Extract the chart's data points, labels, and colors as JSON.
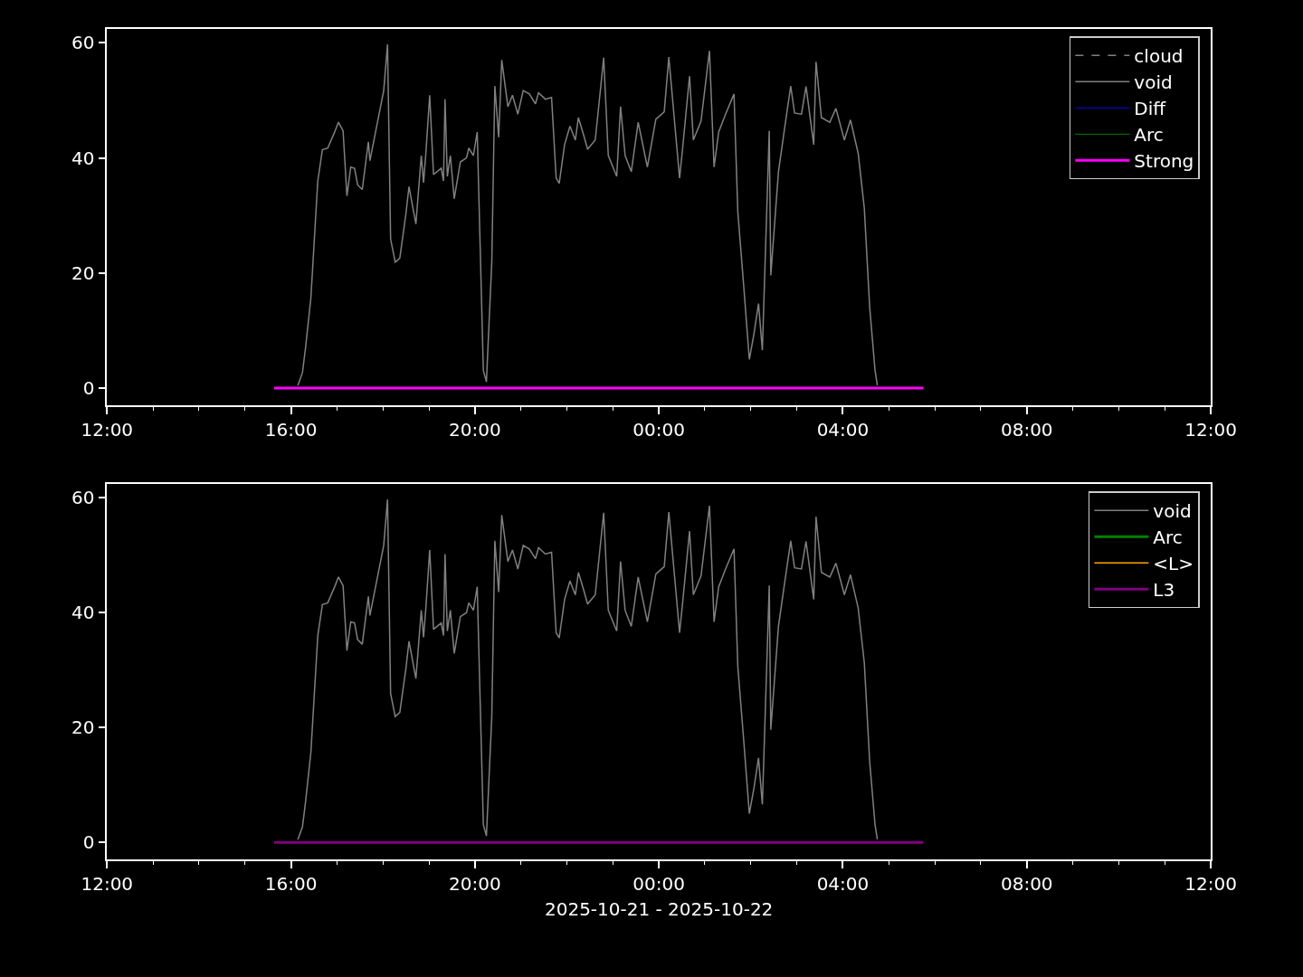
{
  "chart_data": [
    {
      "type": "line",
      "xlim": [
        "2025-10-21T12:00",
        "2025-10-22T12:00"
      ],
      "ylim": [
        -2.97,
        62.4
      ],
      "yticks": [
        0,
        20,
        40,
        60
      ],
      "xticks": [
        {
          "value": "2025-10-21T12:00",
          "label": "12:00"
        },
        {
          "value": "2025-10-21T13:00",
          "label": null
        },
        {
          "value": "2025-10-21T14:00",
          "label": null
        },
        {
          "value": "2025-10-21T15:00",
          "label": null
        },
        {
          "value": "2025-10-21T16:00",
          "label": "16:00"
        },
        {
          "value": "2025-10-21T17:00",
          "label": null
        },
        {
          "value": "2025-10-21T18:00",
          "label": null
        },
        {
          "value": "2025-10-21T19:00",
          "label": null
        },
        {
          "value": "2025-10-21T20:00",
          "label": "20:00"
        },
        {
          "value": "2025-10-21T21:00",
          "label": null
        },
        {
          "value": "2025-10-21T22:00",
          "label": null
        },
        {
          "value": "2025-10-21T23:00",
          "label": null
        },
        {
          "value": "2025-10-22T00:00",
          "label": "00:00"
        },
        {
          "value": "2025-10-22T01:00",
          "label": null
        },
        {
          "value": "2025-10-22T02:00",
          "label": null
        },
        {
          "value": "2025-10-22T03:00",
          "label": null
        },
        {
          "value": "2025-10-22T04:00",
          "label": "04:00"
        },
        {
          "value": "2025-10-22T05:00",
          "label": null
        },
        {
          "value": "2025-10-22T06:00",
          "label": null
        },
        {
          "value": "2025-10-22T07:00",
          "label": null
        },
        {
          "value": "2025-10-22T08:00",
          "label": "08:00"
        },
        {
          "value": "2025-10-22T09:00",
          "label": null
        },
        {
          "value": "2025-10-22T10:00",
          "label": null
        },
        {
          "value": "2025-10-22T11:00",
          "label": null
        },
        {
          "value": "2025-10-22T12:00",
          "label": "12:00"
        }
      ],
      "legend": "top right",
      "series": [
        {
          "name": "cloud",
          "color": "#808080",
          "line_style": "dashed"
        },
        {
          "name": "void",
          "color": "#808080",
          "x": [
            "2025-10-21T16:09",
            "2025-10-21T16:15",
            "2025-10-21T16:19",
            "2025-10-21T16:26",
            "2025-10-21T16:35",
            "2025-10-21T16:41",
            "2025-10-21T16:48",
            "2025-10-21T16:57",
            "2025-10-21T17:02",
            "2025-10-21T17:08",
            "2025-10-21T17:13",
            "2025-10-21T17:18",
            "2025-10-21T17:23",
            "2025-10-21T17:27",
            "2025-10-21T17:33",
            "2025-10-21T17:41",
            "2025-10-21T17:43",
            "2025-10-21T18:01",
            "2025-10-21T18:06",
            "2025-10-21T18:10",
            "2025-10-21T18:16",
            "2025-10-21T18:22",
            "2025-10-21T18:30",
            "2025-10-21T18:34",
            "2025-10-21T18:43",
            "2025-10-21T18:50",
            "2025-10-21T18:53",
            "2025-10-21T18:56",
            "2025-10-21T19:01",
            "2025-10-21T19:06",
            "2025-10-21T19:16",
            "2025-10-21T19:19",
            "2025-10-21T19:21",
            "2025-10-21T19:24",
            "2025-10-21T19:28",
            "2025-10-21T19:33",
            "2025-10-21T19:41",
            "2025-10-21T19:49",
            "2025-10-21T19:52",
            "2025-10-21T19:58",
            "2025-10-21T20:03",
            "2025-10-21T20:11",
            "2025-10-21T20:15",
            "2025-10-21T20:22",
            "2025-10-21T20:26",
            "2025-10-21T20:31",
            "2025-10-21T20:35",
            "2025-10-21T20:43",
            "2025-10-21T20:49",
            "2025-10-21T20:56",
            "2025-10-21T21:03",
            "2025-10-21T21:11",
            "2025-10-21T21:19",
            "2025-10-21T21:23",
            "2025-10-21T21:32",
            "2025-10-21T21:40",
            "2025-10-21T21:46",
            "2025-10-21T21:50",
            "2025-10-21T21:57",
            "2025-10-21T22:04",
            "2025-10-21T22:11",
            "2025-10-21T22:15",
            "2025-10-21T22:22",
            "2025-10-21T22:27",
            "2025-10-21T22:37",
            "2025-10-21T22:48",
            "2025-10-21T22:54",
            "2025-10-21T23:05",
            "2025-10-21T23:10",
            "2025-10-21T23:16",
            "2025-10-21T23:24",
            "2025-10-21T23:33",
            "2025-10-21T23:45",
            "2025-10-21T23:56",
            "2025-10-22T00:07",
            "2025-10-22T00:13",
            "2025-10-22T00:27",
            "2025-10-22T00:31",
            "2025-10-22T00:40",
            "2025-10-22T00:45",
            "2025-10-22T00:55",
            "2025-10-22T01:06",
            "2025-10-22T01:12",
            "2025-10-22T01:18",
            "2025-10-22T01:27",
            "2025-10-22T01:38",
            "2025-10-22T01:43",
            "2025-10-22T01:51",
            "2025-10-22T01:58",
            "2025-10-22T02:04",
            "2025-10-22T02:10",
            "2025-10-22T02:15",
            "2025-10-22T02:24",
            "2025-10-22T02:26",
            "2025-10-22T02:36",
            "2025-10-22T02:43",
            "2025-10-22T02:52",
            "2025-10-22T02:57",
            "2025-10-22T03:06",
            "2025-10-22T03:12",
            "2025-10-22T03:22",
            "2025-10-22T03:25",
            "2025-10-22T03:32",
            "2025-10-22T03:43",
            "2025-10-22T03:51",
            "2025-10-22T04:02",
            "2025-10-22T04:10",
            "2025-10-22T04:20",
            "2025-10-22T04:28",
            "2025-10-22T04:35",
            "2025-10-22T04:42",
            "2025-10-22T04:45"
          ],
          "values": [
            0.5,
            2.7,
            7,
            15.7,
            36,
            41.4,
            41.7,
            44.5,
            46.2,
            44.7,
            33.4,
            38.4,
            38.2,
            35.3,
            34.5,
            42.8,
            39.5,
            51.7,
            59.7,
            25.9,
            21.9,
            22.6,
            30.3,
            35,
            28.5,
            40.4,
            35.7,
            40.8,
            50.9,
            37.1,
            38.2,
            36,
            50.2,
            36.8,
            40.4,
            32.9,
            39.3,
            40,
            41.7,
            40.4,
            44.5,
            3.1,
            1.1,
            21.9,
            52.5,
            43.6,
            57,
            48.9,
            50.9,
            47.6,
            51.7,
            51.1,
            49.4,
            51.3,
            50.2,
            50.5,
            36.5,
            35.6,
            42.3,
            45.5,
            43.1,
            47,
            43.9,
            41.5,
            43.1,
            57.4,
            40.4,
            36.8,
            48.9,
            40.4,
            37.6,
            46.2,
            38.4,
            46.7,
            48,
            57.5,
            36.5,
            41.7,
            54.2,
            43.1,
            46.4,
            58.6,
            38.4,
            44.5,
            47.6,
            51.1,
            30.6,
            17.2,
            5,
            9.4,
            14.7,
            6.6,
            44.7,
            19.6,
            37.6,
            44.2,
            52.5,
            47.8,
            47.6,
            52.4,
            42.3,
            56.7,
            47,
            46.2,
            48.6,
            43.1,
            46.6,
            40.8,
            31.3,
            14.1,
            3.1,
            0.5
          ]
        },
        {
          "name": "Diff",
          "color": "#0000ff"
        },
        {
          "name": "Arc",
          "color": "#008000"
        },
        {
          "name": "Strong",
          "color": "#ff00ff",
          "x": [
            "2025-10-21T15:38",
            "2025-10-22T05:45"
          ],
          "values": [
            0,
            0
          ]
        }
      ]
    },
    {
      "type": "line",
      "xlabel": "2025-10-21 - 2025-10-22",
      "xlim": [
        "2025-10-21T12:00",
        "2025-10-22T12:00"
      ],
      "ylim": [
        -2.97,
        62.4
      ],
      "yticks": [
        0,
        20,
        40,
        60
      ],
      "xticks": [
        {
          "value": "2025-10-21T12:00",
          "label": "12:00"
        },
        {
          "value": "2025-10-21T13:00",
          "label": null
        },
        {
          "value": "2025-10-21T14:00",
          "label": null
        },
        {
          "value": "2025-10-21T15:00",
          "label": null
        },
        {
          "value": "2025-10-21T16:00",
          "label": "16:00"
        },
        {
          "value": "2025-10-21T17:00",
          "label": null
        },
        {
          "value": "2025-10-21T18:00",
          "label": null
        },
        {
          "value": "2025-10-21T19:00",
          "label": null
        },
        {
          "value": "2025-10-21T20:00",
          "label": "20:00"
        },
        {
          "value": "2025-10-21T21:00",
          "label": null
        },
        {
          "value": "2025-10-21T22:00",
          "label": null
        },
        {
          "value": "2025-10-21T23:00",
          "label": null
        },
        {
          "value": "2025-10-22T00:00",
          "label": "00:00"
        },
        {
          "value": "2025-10-22T01:00",
          "label": null
        },
        {
          "value": "2025-10-22T02:00",
          "label": null
        },
        {
          "value": "2025-10-22T03:00",
          "label": null
        },
        {
          "value": "2025-10-22T04:00",
          "label": "04:00"
        },
        {
          "value": "2025-10-22T05:00",
          "label": null
        },
        {
          "value": "2025-10-22T06:00",
          "label": null
        },
        {
          "value": "2025-10-22T07:00",
          "label": null
        },
        {
          "value": "2025-10-22T08:00",
          "label": "08:00"
        },
        {
          "value": "2025-10-22T09:00",
          "label": null
        },
        {
          "value": "2025-10-22T10:00",
          "label": null
        },
        {
          "value": "2025-10-22T11:00",
          "label": null
        },
        {
          "value": "2025-10-22T12:00",
          "label": "12:00"
        }
      ],
      "legend": "top right",
      "series": [
        {
          "name": "void",
          "color": "#808080",
          "x": [
            "2025-10-21T16:09",
            "2025-10-21T16:15",
            "2025-10-21T16:19",
            "2025-10-21T16:26",
            "2025-10-21T16:35",
            "2025-10-21T16:41",
            "2025-10-21T16:48",
            "2025-10-21T16:57",
            "2025-10-21T17:02",
            "2025-10-21T17:08",
            "2025-10-21T17:13",
            "2025-10-21T17:18",
            "2025-10-21T17:23",
            "2025-10-21T17:27",
            "2025-10-21T17:33",
            "2025-10-21T17:41",
            "2025-10-21T17:43",
            "2025-10-21T18:01",
            "2025-10-21T18:06",
            "2025-10-21T18:10",
            "2025-10-21T18:16",
            "2025-10-21T18:22",
            "2025-10-21T18:30",
            "2025-10-21T18:34",
            "2025-10-21T18:43",
            "2025-10-21T18:50",
            "2025-10-21T18:53",
            "2025-10-21T18:56",
            "2025-10-21T19:01",
            "2025-10-21T19:06",
            "2025-10-21T19:16",
            "2025-10-21T19:19",
            "2025-10-21T19:21",
            "2025-10-21T19:24",
            "2025-10-21T19:28",
            "2025-10-21T19:33",
            "2025-10-21T19:41",
            "2025-10-21T19:49",
            "2025-10-21T19:52",
            "2025-10-21T19:58",
            "2025-10-21T20:03",
            "2025-10-21T20:11",
            "2025-10-21T20:15",
            "2025-10-21T20:22",
            "2025-10-21T20:26",
            "2025-10-21T20:31",
            "2025-10-21T20:35",
            "2025-10-21T20:43",
            "2025-10-21T20:49",
            "2025-10-21T20:56",
            "2025-10-21T21:03",
            "2025-10-21T21:11",
            "2025-10-21T21:19",
            "2025-10-21T21:23",
            "2025-10-21T21:32",
            "2025-10-21T21:40",
            "2025-10-21T21:46",
            "2025-10-21T21:50",
            "2025-10-21T21:57",
            "2025-10-21T22:04",
            "2025-10-21T22:11",
            "2025-10-21T22:15",
            "2025-10-21T22:22",
            "2025-10-21T22:27",
            "2025-10-21T22:37",
            "2025-10-21T22:48",
            "2025-10-21T22:54",
            "2025-10-21T23:05",
            "2025-10-21T23:10",
            "2025-10-21T23:16",
            "2025-10-21T23:24",
            "2025-10-21T23:33",
            "2025-10-21T23:45",
            "2025-10-21T23:56",
            "2025-10-22T00:07",
            "2025-10-22T00:13",
            "2025-10-22T00:27",
            "2025-10-22T00:31",
            "2025-10-22T00:40",
            "2025-10-22T00:45",
            "2025-10-22T00:55",
            "2025-10-22T01:06",
            "2025-10-22T01:12",
            "2025-10-22T01:18",
            "2025-10-22T01:27",
            "2025-10-22T01:38",
            "2025-10-22T01:43",
            "2025-10-22T01:51",
            "2025-10-22T01:58",
            "2025-10-22T02:04",
            "2025-10-22T02:10",
            "2025-10-22T02:15",
            "2025-10-22T02:24",
            "2025-10-22T02:26",
            "2025-10-22T02:36",
            "2025-10-22T02:43",
            "2025-10-22T02:52",
            "2025-10-22T02:57",
            "2025-10-22T03:06",
            "2025-10-22T03:12",
            "2025-10-22T03:22",
            "2025-10-22T03:25",
            "2025-10-22T03:32",
            "2025-10-22T03:43",
            "2025-10-22T03:51",
            "2025-10-22T04:02",
            "2025-10-22T04:10",
            "2025-10-22T04:20",
            "2025-10-22T04:28",
            "2025-10-22T04:35",
            "2025-10-22T04:42",
            "2025-10-22T04:45"
          ],
          "values": [
            0.5,
            2.7,
            7,
            15.7,
            36,
            41.4,
            41.7,
            44.5,
            46.2,
            44.7,
            33.4,
            38.4,
            38.2,
            35.3,
            34.5,
            42.8,
            39.5,
            51.7,
            59.7,
            25.9,
            21.9,
            22.6,
            30.3,
            35,
            28.5,
            40.4,
            35.7,
            40.8,
            50.9,
            37.1,
            38.2,
            36,
            50.2,
            36.8,
            40.4,
            32.9,
            39.3,
            40,
            41.7,
            40.4,
            44.5,
            3.1,
            1.1,
            21.9,
            52.5,
            43.6,
            57,
            48.9,
            50.9,
            47.6,
            51.7,
            51.1,
            49.4,
            51.3,
            50.2,
            50.5,
            36.5,
            35.6,
            42.3,
            45.5,
            43.1,
            47,
            43.9,
            41.5,
            43.1,
            57.4,
            40.4,
            36.8,
            48.9,
            40.4,
            37.6,
            46.2,
            38.4,
            46.7,
            48,
            57.5,
            36.5,
            41.7,
            54.2,
            43.1,
            46.4,
            58.6,
            38.4,
            44.5,
            47.6,
            51.1,
            30.6,
            17.2,
            5,
            9.4,
            14.7,
            6.6,
            44.7,
            19.6,
            37.6,
            44.2,
            52.5,
            47.8,
            47.6,
            52.4,
            42.3,
            56.7,
            47,
            46.2,
            48.6,
            43.1,
            46.6,
            40.8,
            31.3,
            14.1,
            3.1,
            0.5
          ]
        },
        {
          "name": "Arc",
          "color": "#008000"
        },
        {
          "name": "<L>",
          "color": "#ffa500"
        },
        {
          "name": "L3",
          "color": "#800080",
          "x": [
            "2025-10-21T15:38",
            "2025-10-22T05:45"
          ],
          "values": [
            0,
            0
          ]
        }
      ]
    }
  ]
}
